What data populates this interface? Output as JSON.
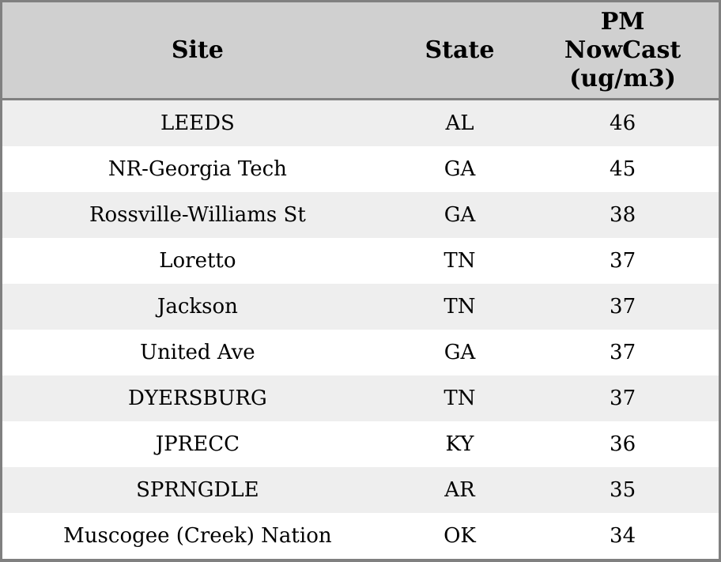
{
  "table": {
    "columns": [
      {
        "label": "Site"
      },
      {
        "label": "State"
      },
      {
        "label": "PM NowCast (ug/m3)"
      }
    ],
    "rows": [
      {
        "site": "LEEDS",
        "state": "AL",
        "value": 46
      },
      {
        "site": "NR-Georgia Tech",
        "state": "GA",
        "value": 45
      },
      {
        "site": "Rossville-Williams St",
        "state": "GA",
        "value": 38
      },
      {
        "site": "Loretto",
        "state": "TN",
        "value": 37
      },
      {
        "site": "Jackson",
        "state": "TN",
        "value": 37
      },
      {
        "site": "United Ave",
        "state": "GA",
        "value": 37
      },
      {
        "site": "DYERSBURG",
        "state": "TN",
        "value": 37
      },
      {
        "site": "JPRECC",
        "state": "KY",
        "value": 36
      },
      {
        "site": "SPRNGDLE",
        "state": "AR",
        "value": 35
      },
      {
        "site": "Muscogee (Creek) Nation",
        "state": "OK",
        "value": 34
      }
    ]
  },
  "colors": {
    "header_bg": "#d0d0d0",
    "border": "#808080",
    "stripe_row_bg": "#eeeeee",
    "plain_row_bg": "#ffffff",
    "text": "#000000"
  },
  "chart_data": {
    "type": "table",
    "title": "",
    "columns": [
      "Site",
      "State",
      "PM NowCast (ug/m3)"
    ],
    "rows": [
      [
        "LEEDS",
        "AL",
        46
      ],
      [
        "NR-Georgia Tech",
        "GA",
        45
      ],
      [
        "Rossville-Williams St",
        "GA",
        38
      ],
      [
        "Loretto",
        "TN",
        37
      ],
      [
        "Jackson",
        "TN",
        37
      ],
      [
        "United Ave",
        "GA",
        37
      ],
      [
        "DYERSBURG",
        "TN",
        37
      ],
      [
        "JPRECC",
        "KY",
        36
      ],
      [
        "SPRNGDLE",
        "AR",
        35
      ],
      [
        "Muscogee (Creek) Nation",
        "OK",
        34
      ]
    ],
    "layout_hints": {
      "header_background": "#d0d0d0",
      "alternating_rows": true,
      "grid": "outer-border-and-header-rule-only"
    }
  }
}
